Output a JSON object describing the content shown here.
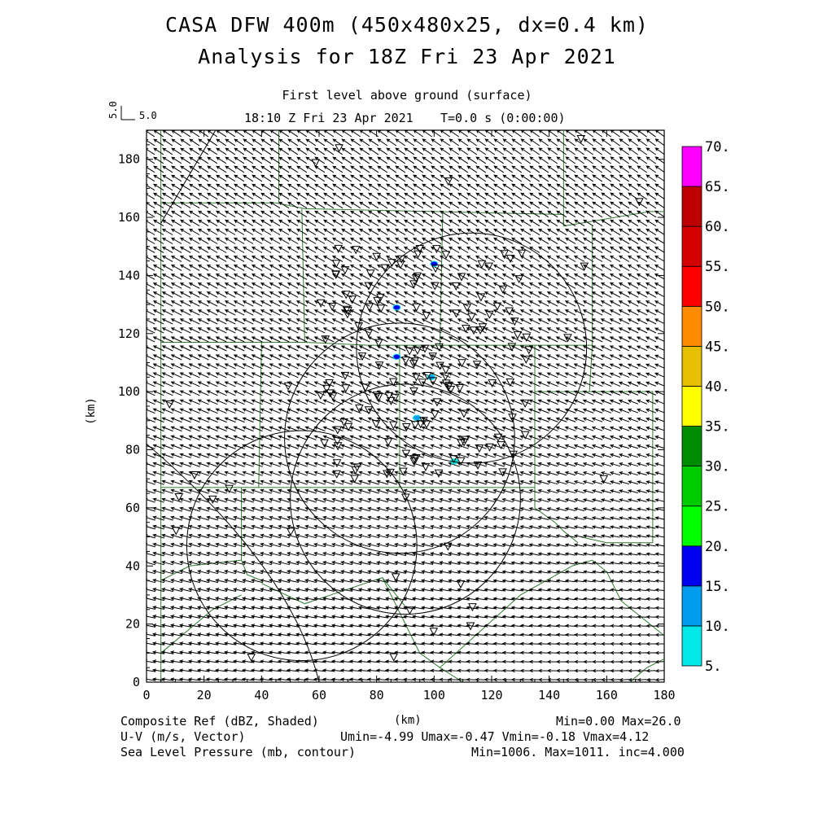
{
  "header": {
    "title_line1": "CASA DFW 400m (450x480x25, dx=0.4 km)",
    "title_line2": "Analysis for 18Z Fri 23 Apr 2021",
    "level": "First level above ground (surface)",
    "valid_time": "18:10 Z Fri 23 Apr 2021",
    "forecast_time": "T=0.0 s (0:00:00)"
  },
  "vector_key": {
    "value_vertical": "5.0",
    "value_horizontal": "5.0"
  },
  "axes": {
    "x_label": "(km)",
    "y_label": "(km)",
    "x_range": [
      0,
      180
    ],
    "y_range": [
      0,
      190
    ],
    "x_ticks": [
      "0",
      "20",
      "40",
      "60",
      "80",
      "100",
      "120",
      "140",
      "160",
      "180"
    ],
    "y_ticks": [
      "0",
      "20",
      "40",
      "60",
      "80",
      "100",
      "120",
      "140",
      "160",
      "180"
    ]
  },
  "colorbar": {
    "levels": [
      "5.",
      "10.",
      "15.",
      "20.",
      "25.",
      "30.",
      "35.",
      "40.",
      "45.",
      "50.",
      "55.",
      "60.",
      "65.",
      "70."
    ],
    "colors": [
      "#00e8e8",
      "#009cf0",
      "#0000f0",
      "#00ff00",
      "#00cc00",
      "#008c00",
      "#ffff00",
      "#e6bf00",
      "#ff8c00",
      "#ff0000",
      "#d40000",
      "#bc0000",
      "#ff00ff"
    ]
  },
  "footer": {
    "field1": "Composite Ref (dBZ, Shaded)",
    "field1_stats": "Min=0.00 Max=26.0",
    "field2": "U-V (m/s, Vector)",
    "field2_stats": "Umin=-4.99 Umax=-0.47 Vmin=-0.18 Vmax=4.12",
    "field3": "Sea Level Pressure (mb, contour)",
    "field3_stats": "Min=1006. Max=1011. inc=4.000"
  },
  "map_data": {
    "radar_rings_km": [
      {
        "cx": 88,
        "cy": 84,
        "r": 40
      },
      {
        "cx": 113,
        "cy": 115,
        "r": 40
      },
      {
        "cx": 54,
        "cy": 47,
        "r": 40
      },
      {
        "cx": 90,
        "cy": 63,
        "r": 40
      }
    ],
    "echoes_km": [
      {
        "x": 100,
        "y": 144,
        "dbz": 15
      },
      {
        "x": 87,
        "y": 129,
        "dbz": 15
      },
      {
        "x": 87,
        "y": 112,
        "dbz": 15
      },
      {
        "x": 99,
        "y": 105,
        "dbz": 10
      },
      {
        "x": 94,
        "y": 91,
        "dbz": 10
      },
      {
        "x": 107,
        "y": 76,
        "dbz": 5
      }
    ]
  }
}
